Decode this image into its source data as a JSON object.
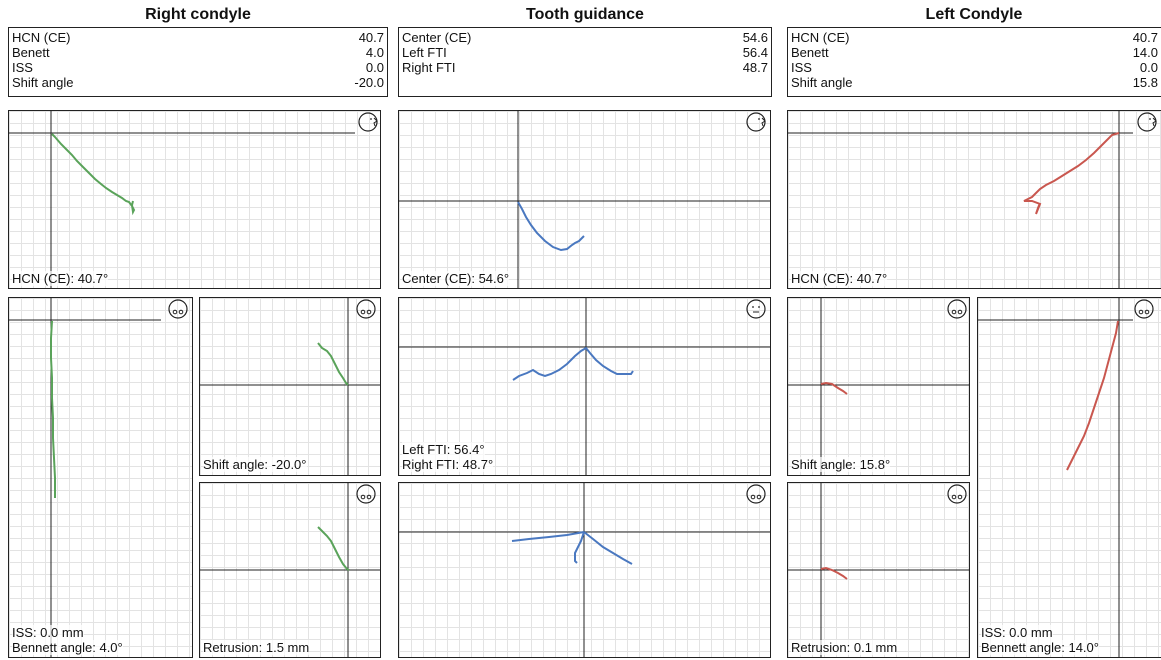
{
  "columns": {
    "right": {
      "title": "Right condyle",
      "values": [
        {
          "label": "HCN (CE)",
          "value": "40.7"
        },
        {
          "label": "Benett",
          "value": "4.0"
        },
        {
          "label": "ISS",
          "value": "0.0"
        },
        {
          "label": "Shift angle",
          "value": "-20.0"
        }
      ]
    },
    "tooth": {
      "title": "Tooth guidance",
      "values": [
        {
          "label": "Center (CE)",
          "value": "54.6"
        },
        {
          "label": "Left FTI",
          "value": "56.4"
        },
        {
          "label": "Right FTI",
          "value": "48.7"
        }
      ]
    },
    "left": {
      "title": "Left Condyle",
      "values": [
        {
          "label": "HCN (CE)",
          "value": "40.7"
        },
        {
          "label": "Benett",
          "value": "14.0"
        },
        {
          "label": "ISS",
          "value": "0.0"
        },
        {
          "label": "Shift angle",
          "value": "15.8"
        }
      ]
    }
  },
  "panels": {
    "right_sagittal": {
      "label": "HCN (CE): 40.7°"
    },
    "right_horizontal": {
      "label1": "ISS: 0.0 mm",
      "label2": "Bennett angle: 4.0°"
    },
    "right_shift": {
      "label": "Shift angle: -20.0°"
    },
    "right_retrusion": {
      "label": "Retrusion: 1.5 mm"
    },
    "tooth_sagittal": {
      "label": "Center (CE): 54.6°"
    },
    "tooth_frontal": {
      "label1": "Left FTI: 56.4°",
      "label2": "Right FTI: 48.7°"
    },
    "tooth_horizontal": {},
    "left_sagittal": {
      "label": "HCN (CE): 40.7°"
    },
    "left_shift": {
      "label": "Shift angle: 15.8°"
    },
    "left_retrusion": {
      "label": "Retrusion: 0.1 mm"
    },
    "left_horizontal": {
      "label1": "ISS: 0.0 mm",
      "label2": "Bennett angle: 14.0°"
    }
  },
  "colors": {
    "right_trace": "#5aa35a",
    "tooth_trace": "#4a78c0",
    "left_trace": "#c9574f",
    "axis": "#222222",
    "grid": "#e3e3e3"
  },
  "icons": {
    "side_view": "face-profile-icon",
    "top_view": "head-top-view-icon",
    "front_view": "face-front-icon"
  }
}
